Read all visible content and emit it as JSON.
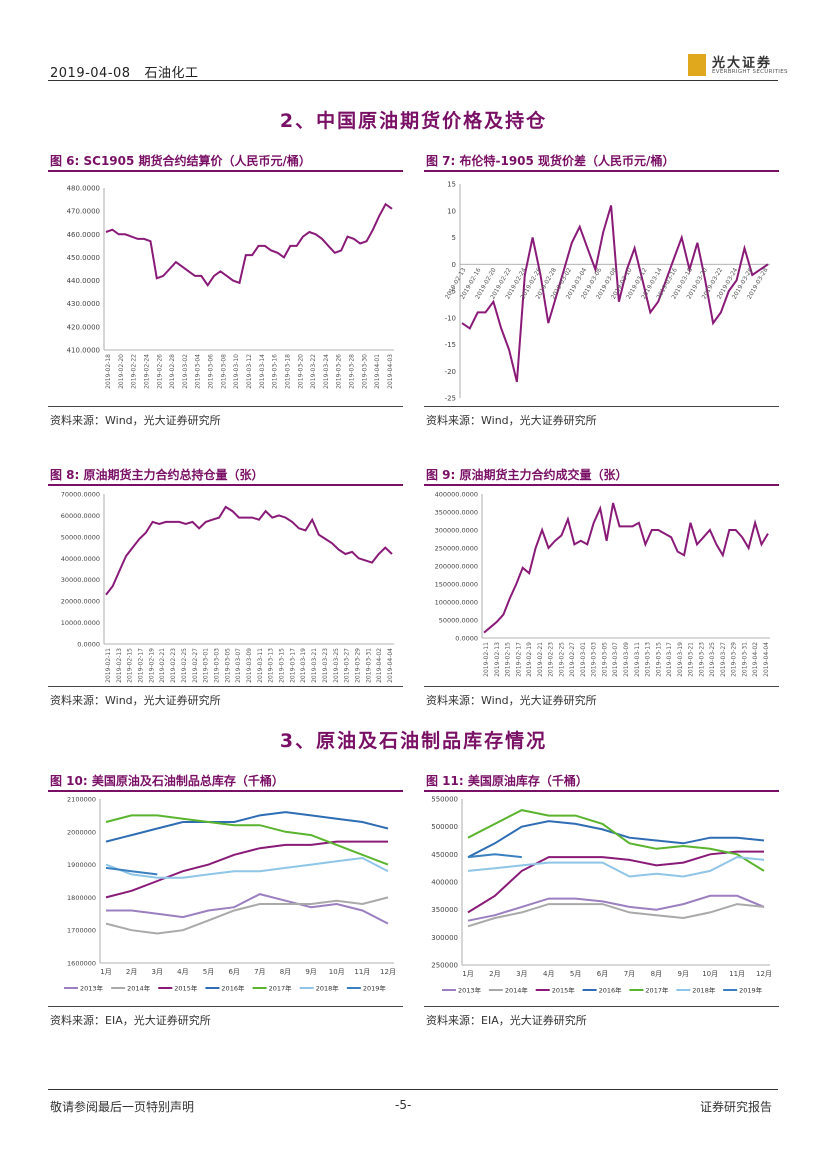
{
  "header": {
    "date": "2019-04-08",
    "category": "石油化工",
    "brand_cn": "光大证券",
    "brand_en": "EVERBRIGHT SECURITIES"
  },
  "sections": {
    "s2": "2、中国原油期货价格及持仓",
    "s3": "3、原油及石油制品库存情况"
  },
  "footer": {
    "left": "敬请参阅最后一页特别声明",
    "page": "-5-",
    "right": "证券研究报告"
  },
  "colors": {
    "series_main": "#8a1a78"
  },
  "charts": [
    {
      "id": "fig6",
      "title": "图 6:  SC1905 期货合约结算价（人民币元/桶）",
      "source": "资料来源：Wind，光大证券研究所",
      "chart_data": {
        "type": "line",
        "title": "SC1905期货合约结算价（人民币元/桶）",
        "ylim": [
          410,
          480
        ],
        "yticks": [
          "480.0000",
          "470.0000",
          "460.0000",
          "450.0000",
          "440.0000",
          "430.0000",
          "420.0000",
          "410.0000"
        ],
        "xticks": [
          "2019-02-18",
          "2019-02-20",
          "2019-02-22",
          "2019-02-24",
          "2019-02-26",
          "2019-02-28",
          "2019-03-02",
          "2019-03-04",
          "2019-03-06",
          "2019-03-08",
          "2019-03-10",
          "2019-03-12",
          "2019-03-14",
          "2019-03-16",
          "2019-03-18",
          "2019-03-20",
          "2019-03-22",
          "2019-03-24",
          "2019-03-26",
          "2019-03-28",
          "2019-03-30",
          "2019-04-01",
          "2019-04-03"
        ],
        "values": [
          461,
          462,
          460,
          460,
          459,
          458,
          458,
          457,
          441,
          442,
          445,
          448,
          446,
          444,
          442,
          442,
          438,
          442,
          444,
          442,
          440,
          439,
          451,
          451,
          455,
          455,
          453,
          452,
          450,
          455,
          455,
          459,
          461,
          460,
          458,
          455,
          452,
          453,
          459,
          458,
          456,
          457,
          462,
          468,
          473,
          471
        ]
      }
    },
    {
      "id": "fig7",
      "title": "图 7:  布伦特-1905 现货价差（人民币元/桶）",
      "source": "资料来源：Wind，光大证券研究所",
      "chart_data": {
        "type": "line",
        "title": "布伦特-1905现货价差（人民币元/桶）",
        "ylim": [
          -25,
          15
        ],
        "yticks": [
          "15",
          "10",
          "5",
          "0",
          "-5",
          "-10",
          "-15",
          "-20",
          "-25"
        ],
        "xticks": [
          "2019-02-13",
          "2019-02-16",
          "2019-02-20",
          "2019-02-22",
          "2019-02-24",
          "2019-02-26",
          "2019-02-28",
          "2019-03-02",
          "2019-03-04",
          "2019-03-06",
          "2019-03-08",
          "2019-03-10",
          "2019-03-12",
          "2019-03-14",
          "2019-03-16",
          "2019-03-18",
          "2019-03-20",
          "2019-03-22",
          "2019-03-24",
          "2019-03-26",
          "2019-03-28"
        ],
        "values": [
          -11,
          -12,
          -9,
          -9,
          -7,
          -12,
          -16,
          -22,
          -2,
          5,
          -2,
          -11,
          -6,
          -1,
          4,
          7,
          3,
          -1,
          6,
          11,
          -7,
          -1,
          3,
          -3,
          -9,
          -7,
          -3,
          1,
          5,
          -1,
          4,
          -3,
          -11,
          -9,
          -5,
          -3,
          3,
          -2,
          -1,
          0
        ]
      }
    },
    {
      "id": "fig8",
      "title": "图 8:  原油期货主力合约总持仓量（张）",
      "source": "资料来源：Wind，光大证券研究所",
      "chart_data": {
        "type": "line",
        "title": "原油期货主力合约总持仓量（张）",
        "ylim": [
          0,
          70000
        ],
        "yticks": [
          "70000.0000",
          "60000.0000",
          "50000.0000",
          "40000.0000",
          "30000.0000",
          "20000.0000",
          "10000.0000",
          "0.0000"
        ],
        "xticks": [
          "2019-02-11",
          "2019-02-13",
          "2019-02-15",
          "2019-02-17",
          "2019-02-19",
          "2019-02-21",
          "2019-02-23",
          "2019-02-25",
          "2019-02-27",
          "2019-03-01",
          "2019-03-03",
          "2019-03-05",
          "2019-03-07",
          "2019-03-09",
          "2019-03-11",
          "2019-03-13",
          "2019-03-15",
          "2019-03-17",
          "2019-03-19",
          "2019-03-21",
          "2019-03-23",
          "2019-03-25",
          "2019-03-27",
          "2019-03-29",
          "2019-03-31",
          "2019-04-02",
          "2019-04-04"
        ],
        "values": [
          23000,
          27000,
          34000,
          41000,
          45000,
          49000,
          52000,
          57000,
          56000,
          57000,
          57000,
          57000,
          56000,
          57000,
          54000,
          57000,
          58000,
          59000,
          64000,
          62000,
          59000,
          59000,
          59000,
          58000,
          62000,
          59000,
          60000,
          59000,
          57000,
          54000,
          53000,
          58000,
          51000,
          49000,
          47000,
          44000,
          42000,
          43000,
          40000,
          39000,
          38000,
          42000,
          45000,
          42000
        ]
      }
    },
    {
      "id": "fig9",
      "title": "图 9:  原油期货主力合约成交量（张）",
      "source": "资料来源：Wind，光大证券研究所",
      "chart_data": {
        "type": "line",
        "title": "原油期货主力合约成交量（张）",
        "ylim": [
          0,
          400000
        ],
        "yticks": [
          "400000.0000",
          "350000.0000",
          "300000.0000",
          "250000.0000",
          "200000.0000",
          "150000.0000",
          "100000.0000",
          "50000.0000",
          "0.0000"
        ],
        "xticks": [
          "2019-02-11",
          "2019-02-13",
          "2019-02-15",
          "2019-02-17",
          "2019-02-19",
          "2019-02-21",
          "2019-02-23",
          "2019-02-25",
          "2019-02-27",
          "2019-03-01",
          "2019-03-03",
          "2019-03-05",
          "2019-03-07",
          "2019-03-09",
          "2019-03-11",
          "2019-03-13",
          "2019-03-15",
          "2019-03-17",
          "2019-03-19",
          "2019-03-21",
          "2019-03-23",
          "2019-03-25",
          "2019-03-27",
          "2019-03-29",
          "2019-03-31",
          "2019-04-02",
          "2019-04-04"
        ],
        "values": [
          15000,
          30000,
          45000,
          65000,
          110000,
          150000,
          195000,
          180000,
          250000,
          300000,
          250000,
          270000,
          285000,
          330000,
          260000,
          270000,
          260000,
          320000,
          360000,
          270000,
          375000,
          310000,
          310000,
          310000,
          320000,
          260000,
          300000,
          300000,
          290000,
          280000,
          240000,
          230000,
          320000,
          260000,
          280000,
          300000,
          260000,
          230000,
          300000,
          300000,
          280000,
          250000,
          320000,
          260000,
          290000
        ]
      }
    },
    {
      "id": "fig10",
      "title": "图 10:  美国原油及石油制品总库存（千桶）",
      "source": "资料来源：EIA，光大证券研究所",
      "chart_data": {
        "type": "line",
        "title": "美国原油及石油制品总库存（千桶）",
        "ylim": [
          1600000,
          2100000
        ],
        "yticks": [
          "2100000",
          "2000000",
          "1900000",
          "1800000",
          "1700000",
          "1600000"
        ],
        "categories": [
          "1月",
          "2月",
          "3月",
          "4月",
          "5月",
          "6月",
          "7月",
          "8月",
          "9月",
          "10月",
          "11月",
          "12月"
        ],
        "series": [
          {
            "name": "2013年",
            "color": "#9b7fc0",
            "values": [
              1760000,
              1760000,
              1750000,
              1740000,
              1760000,
              1770000,
              1810000,
              1790000,
              1770000,
              1780000,
              1760000,
              1720000
            ]
          },
          {
            "name": "2014年",
            "color": "#a9a9a9",
            "values": [
              1720000,
              1700000,
              1690000,
              1700000,
              1730000,
              1760000,
              1780000,
              1780000,
              1780000,
              1790000,
              1780000,
              1800000
            ]
          },
          {
            "name": "2015年",
            "color": "#8a1a78",
            "values": [
              1800000,
              1820000,
              1850000,
              1880000,
              1900000,
              1930000,
              1950000,
              1960000,
              1960000,
              1970000,
              1970000,
              1970000
            ]
          },
          {
            "name": "2016年",
            "color": "#2e6db4",
            "values": [
              1970000,
              1990000,
              2010000,
              2030000,
              2030000,
              2030000,
              2050000,
              2060000,
              2050000,
              2040000,
              2030000,
              2010000
            ]
          },
          {
            "name": "2017年",
            "color": "#5ab42e",
            "values": [
              2030000,
              2050000,
              2050000,
              2040000,
              2030000,
              2020000,
              2020000,
              2000000,
              1990000,
              1960000,
              1930000,
              1900000
            ]
          },
          {
            "name": "2018年",
            "color": "#8fc5e6",
            "values": [
              1900000,
              1870000,
              1860000,
              1860000,
              1870000,
              1880000,
              1880000,
              1890000,
              1900000,
              1910000,
              1920000,
              1880000
            ]
          },
          {
            "name": "2019年",
            "color": "#3a7fc0",
            "values": [
              1890000,
              1880000,
              1870000,
              null,
              null,
              null,
              null,
              null,
              null,
              null,
              null,
              null
            ]
          }
        ]
      }
    },
    {
      "id": "fig11",
      "title": "图 11:  美国原油库存（千桶）",
      "source": "资料来源：EIA，光大证券研究所",
      "chart_data": {
        "type": "line",
        "title": "美国原油库存（千桶）",
        "ylim": [
          250000,
          550000
        ],
        "yticks": [
          "550000",
          "500000",
          "450000",
          "400000",
          "350000",
          "300000",
          "250000"
        ],
        "categories": [
          "1月",
          "2月",
          "3月",
          "4月",
          "5月",
          "6月",
          "7月",
          "8月",
          "9月",
          "10月",
          "11月",
          "12月"
        ],
        "series": [
          {
            "name": "2013年",
            "color": "#9b7fc0",
            "values": [
              330000,
              340000,
              355000,
              370000,
              370000,
              365000,
              355000,
              350000,
              360000,
              375000,
              375000,
              355000
            ]
          },
          {
            "name": "2014年",
            "color": "#a9a9a9",
            "values": [
              320000,
              335000,
              345000,
              360000,
              360000,
              360000,
              345000,
              340000,
              335000,
              345000,
              360000,
              355000
            ]
          },
          {
            "name": "2015年",
            "color": "#8a1a78",
            "values": [
              345000,
              375000,
              420000,
              445000,
              445000,
              445000,
              440000,
              430000,
              435000,
              450000,
              455000,
              455000
            ]
          },
          {
            "name": "2016年",
            "color": "#2e6db4",
            "values": [
              445000,
              470000,
              500000,
              510000,
              505000,
              495000,
              480000,
              475000,
              470000,
              480000,
              480000,
              475000
            ]
          },
          {
            "name": "2017年",
            "color": "#5ab42e",
            "values": [
              480000,
              505000,
              530000,
              520000,
              520000,
              505000,
              470000,
              460000,
              465000,
              460000,
              450000,
              420000
            ]
          },
          {
            "name": "2018年",
            "color": "#8fc5e6",
            "values": [
              420000,
              425000,
              430000,
              435000,
              435000,
              435000,
              410000,
              415000,
              410000,
              420000,
              445000,
              440000
            ]
          },
          {
            "name": "2019年",
            "color": "#3a7fc0",
            "values": [
              445000,
              450000,
              445000,
              null,
              null,
              null,
              null,
              null,
              null,
              null,
              null,
              null
            ]
          }
        ]
      }
    }
  ]
}
